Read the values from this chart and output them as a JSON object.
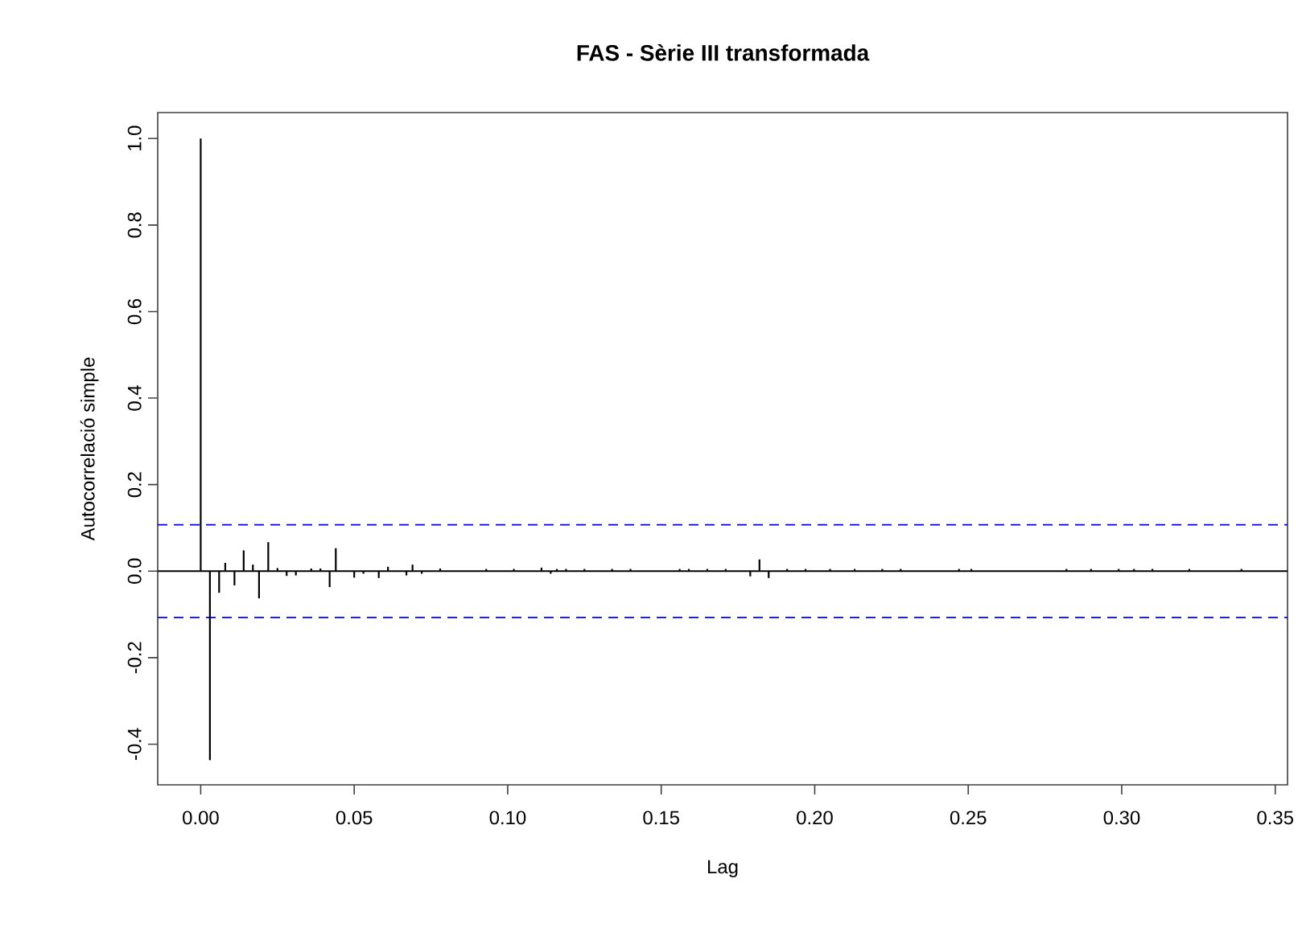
{
  "chart_data": {
    "type": "bar",
    "title": "FAS - Sèrie III transformada",
    "xlabel": "Lag",
    "ylabel": "Autocorrelació simple",
    "x": [
      0,
      0.003,
      0.006,
      0.008,
      0.011,
      0.014,
      0.017,
      0.019,
      0.022,
      0.025,
      0.028,
      0.031,
      0.036,
      0.039,
      0.042,
      0.044,
      0.047,
      0.05,
      0.053,
      0.058,
      0.061,
      0.067,
      0.069,
      0.072,
      0.078,
      0.093,
      0.102,
      0.111,
      0.114,
      0.116,
      0.119,
      0.125,
      0.134,
      0.14,
      0.156,
      0.159,
      0.162,
      0.165,
      0.171,
      0.179,
      0.182,
      0.185,
      0.191,
      0.197,
      0.205,
      0.213,
      0.222,
      0.228,
      0.247,
      0.251,
      0.282,
      0.29,
      0.299,
      0.304,
      0.31,
      0.322,
      0.339
    ],
    "values": [
      1.0,
      -0.437,
      -0.05,
      0.019,
      -0.033,
      0.048,
      0.015,
      -0.063,
      0.067,
      0.007,
      -0.011,
      -0.01,
      0.006,
      0.006,
      -0.037,
      0.053,
      null,
      -0.015,
      -0.006,
      -0.016,
      0.01,
      -0.01,
      0.015,
      -0.006,
      0.006,
      0.005,
      0.005,
      0.008,
      -0.006,
      0.005,
      0.005,
      0.005,
      0.005,
      0.005,
      0.005,
      0.005,
      null,
      0.005,
      0.005,
      -0.012,
      0.027,
      -0.016,
      0.005,
      0.005,
      0.005,
      0.005,
      0.005,
      0.005,
      0.005,
      0.005,
      0.005,
      0.005,
      0.005,
      0.005,
      0.005,
      0.005,
      0.005
    ],
    "color": "#000000",
    "xlim": [
      -0.014,
      0.354
    ],
    "ylim": [
      -0.494,
      1.06
    ],
    "xticks": [
      {
        "value": 0,
        "label": "0.00"
      },
      {
        "value": 0.05,
        "label": "0.05"
      },
      {
        "value": 0.1,
        "label": "0.10"
      },
      {
        "value": 0.15,
        "label": "0.15"
      },
      {
        "value": 0.2,
        "label": "0.20"
      },
      {
        "value": 0.25,
        "label": "0.25"
      },
      {
        "value": 0.3,
        "label": "0.30"
      },
      {
        "value": 0.35,
        "label": "0.35"
      }
    ],
    "yticks": [
      {
        "value": -0.4,
        "label": "-0.4"
      },
      {
        "value": -0.2,
        "label": "-0.2"
      },
      {
        "value": 0,
        "label": "0.0"
      },
      {
        "value": 0.2,
        "label": "0.2"
      },
      {
        "value": 0.4,
        "label": "0.4"
      },
      {
        "value": 0.6,
        "label": "0.6"
      },
      {
        "value": 0.8,
        "label": "0.8"
      },
      {
        "value": 1.0,
        "label": "1.0"
      }
    ],
    "ref_lines": [
      {
        "axis": "y",
        "value": 0,
        "color": "#000000",
        "line_style": "solid"
      },
      {
        "axis": "y",
        "value": 0.107,
        "color": "#0000ff",
        "line_style": "dashed"
      },
      {
        "axis": "y",
        "value": -0.107,
        "color": "#0000ff",
        "line_style": "dashed"
      }
    ]
  }
}
